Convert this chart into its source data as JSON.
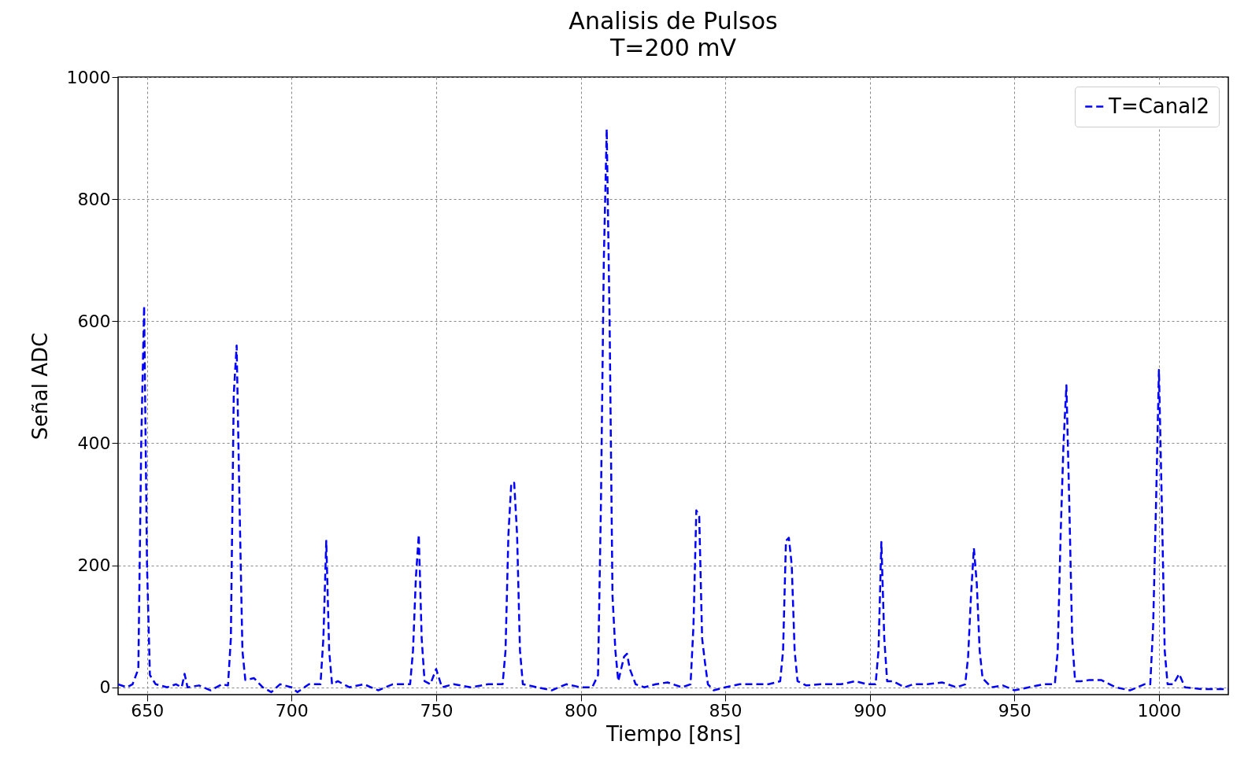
{
  "chart_data": {
    "type": "line",
    "title": "Analisis de Pulsos",
    "subtitle": "T=200 mV",
    "xlabel": "Tiempo [8ns]",
    "ylabel": "Señal ADC",
    "xlim": [
      640,
      1024
    ],
    "ylim": [
      -12,
      1000
    ],
    "xticks": [
      650,
      700,
      750,
      800,
      850,
      900,
      950,
      1000
    ],
    "yticks": [
      0,
      200,
      400,
      600,
      800,
      1000
    ],
    "grid": true,
    "legend": "top right",
    "line_style": "dashed",
    "series": [
      {
        "name": "T=Canal2",
        "color": "#0000ff",
        "x": [
          640,
          643,
          645,
          647,
          648,
          649,
          650,
          651,
          653,
          657,
          660,
          662,
          663,
          664,
          668,
          672,
          676,
          678,
          679,
          680,
          681,
          682,
          683,
          684,
          687,
          690,
          693,
          696,
          700,
          702,
          706,
          710,
          711,
          712,
          713,
          714,
          716,
          720,
          725,
          730,
          735,
          741,
          742,
          743,
          744,
          745,
          746,
          748,
          750,
          752,
          756,
          762,
          768,
          773,
          774,
          775,
          776,
          777,
          778,
          779,
          780,
          785,
          790,
          795,
          800,
          804,
          806,
          807,
          808,
          809,
          810,
          811,
          812,
          813,
          815,
          816,
          817,
          819,
          822,
          826,
          830,
          835,
          838,
          839,
          840,
          841,
          842,
          843,
          844,
          846,
          850,
          855,
          860,
          865,
          869,
          870,
          871,
          872,
          873,
          874,
          875,
          878,
          883,
          890,
          895,
          899,
          902,
          903,
          904,
          905,
          906,
          908,
          912,
          915,
          920,
          925,
          930,
          933,
          934,
          935,
          936,
          937,
          938,
          939,
          942,
          946,
          950,
          955,
          960,
          964,
          965,
          966,
          967,
          968,
          969,
          970,
          971,
          973,
          976,
          980,
          985,
          990,
          995,
          997,
          998,
          999,
          1000,
          1001,
          1002,
          1003,
          1005,
          1007,
          1009,
          1015,
          1020,
          1024
        ],
        "values": [
          5,
          0,
          5,
          30,
          400,
          625,
          200,
          20,
          5,
          0,
          5,
          0,
          22,
          0,
          3,
          -5,
          5,
          3,
          80,
          480,
          560,
          300,
          60,
          12,
          15,
          0,
          -8,
          5,
          0,
          -8,
          5,
          5,
          80,
          240,
          60,
          5,
          10,
          0,
          5,
          -5,
          5,
          5,
          60,
          180,
          250,
          80,
          10,
          5,
          30,
          0,
          5,
          0,
          5,
          5,
          60,
          250,
          335,
          335,
          250,
          60,
          5,
          0,
          -5,
          5,
          0,
          0,
          20,
          300,
          700,
          915,
          600,
          150,
          60,
          10,
          50,
          55,
          30,
          5,
          0,
          5,
          8,
          0,
          5,
          100,
          290,
          280,
          80,
          40,
          5,
          -5,
          0,
          5,
          5,
          5,
          10,
          60,
          240,
          245,
          200,
          60,
          10,
          3,
          5,
          5,
          10,
          5,
          5,
          60,
          238,
          80,
          10,
          10,
          0,
          5,
          5,
          8,
          0,
          5,
          50,
          150,
          228,
          170,
          60,
          15,
          0,
          3,
          -5,
          0,
          5,
          5,
          60,
          250,
          400,
          495,
          300,
          80,
          10,
          10,
          12,
          12,
          0,
          -5,
          5,
          5,
          100,
          300,
          520,
          300,
          60,
          5,
          5,
          22,
          0,
          -3,
          -3,
          -3
        ]
      }
    ]
  }
}
